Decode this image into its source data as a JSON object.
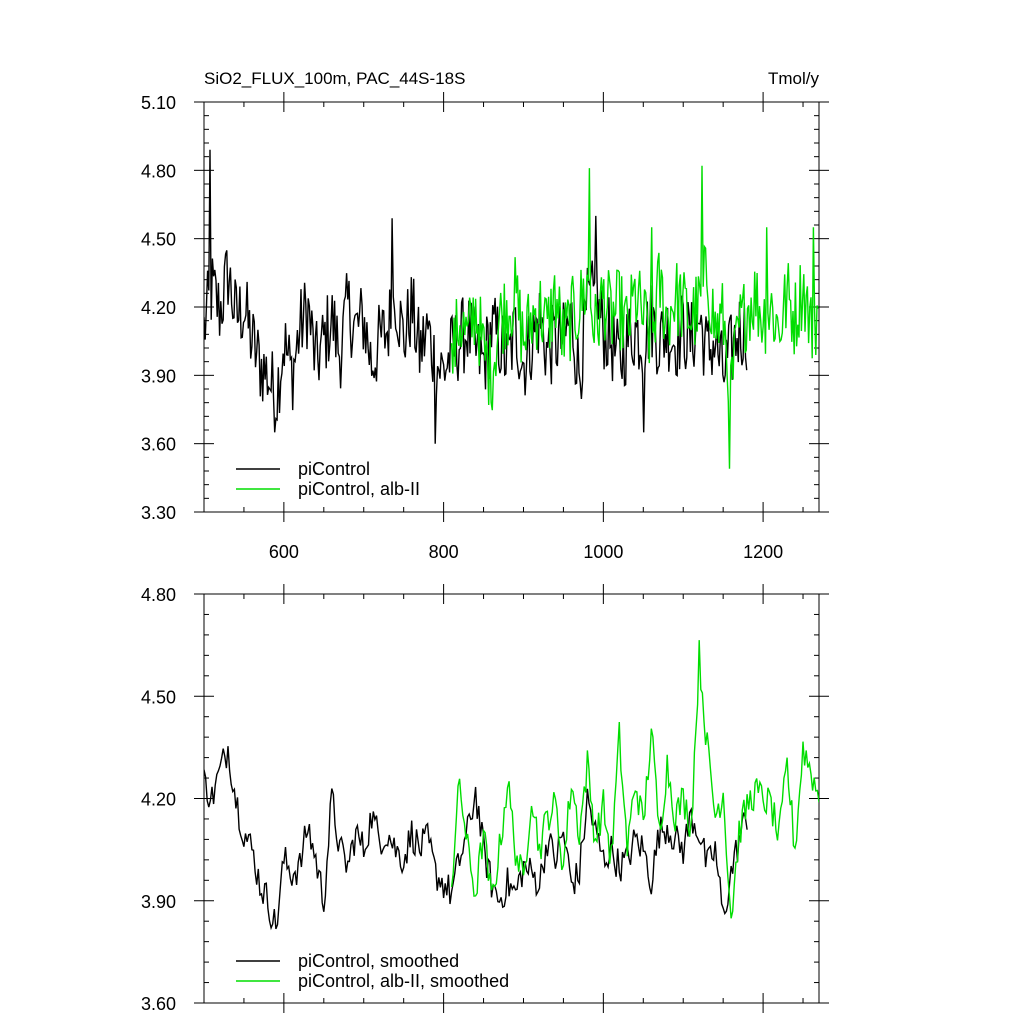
{
  "chart_data": [
    {
      "type": "line",
      "title": "SiO2_FLUX_100m, PAC_44S-18S",
      "units": "Tmol/y",
      "xlim": [
        500,
        1270
      ],
      "ylim": [
        3.3,
        5.1
      ],
      "x_ticks": [
        "600",
        "800",
        "1000",
        "1200"
      ],
      "y_ticks": [
        "3.30",
        "3.60",
        "3.90",
        "4.20",
        "4.50",
        "4.80",
        "5.10"
      ],
      "legend": [
        "piControl",
        "piControl, alb-II"
      ],
      "legend_position": "bottom-left",
      "series": [
        {
          "name": "piControl",
          "color": "#000000",
          "x": [
            500,
            510,
            520,
            530,
            540,
            550,
            560,
            570,
            580,
            590,
            600,
            610,
            620,
            630,
            640,
            650,
            660,
            670,
            680,
            690,
            700,
            710,
            720,
            730,
            740,
            750,
            760,
            770,
            780,
            790,
            800,
            810,
            820,
            830,
            840,
            850,
            860,
            870,
            880,
            890,
            900,
            910,
            920,
            930,
            940,
            950,
            960,
            970,
            980,
            990,
            1000,
            1010,
            1020,
            1030,
            1040,
            1050,
            1060,
            1070,
            1080,
            1090,
            1100,
            1110,
            1120,
            1130,
            1140,
            1150,
            1160,
            1170,
            1180
          ],
          "values": [
            4.1,
            4.28,
            4.18,
            4.35,
            4.15,
            4.2,
            4.05,
            3.95,
            3.9,
            3.8,
            4.05,
            3.9,
            4.1,
            4.2,
            3.95,
            4.05,
            4.15,
            4.0,
            4.2,
            4.1,
            4.15,
            3.95,
            4.05,
            4.1,
            4.25,
            4.05,
            4.2,
            4.0,
            4.1,
            3.95,
            3.92,
            4.0,
            4.05,
            4.1,
            4.0,
            3.95,
            4.1,
            4.05,
            3.95,
            4.1,
            3.95,
            4.05,
            4.15,
            4.0,
            4.05,
            4.05,
            4.15,
            3.9,
            4.2,
            4.25,
            4.1,
            4.05,
            3.95,
            4.05,
            4.1,
            4.05,
            4.15,
            4.05,
            4.1,
            4.05,
            4.1,
            4.05,
            4.15,
            4.0,
            4.05,
            3.9,
            4.0,
            4.1,
            4.1
          ],
          "spikes": [
            [
              508,
              4.89
            ],
            [
              735,
              4.59
            ],
            [
              790,
              3.6
            ],
            [
              588,
              3.65
            ],
            [
              990,
              4.6
            ],
            [
              1050,
              3.65
            ]
          ]
        },
        {
          "name": "piControl, alb-II",
          "color": "#00dd00",
          "x": [
            810,
            820,
            830,
            840,
            850,
            860,
            870,
            880,
            890,
            900,
            910,
            920,
            930,
            940,
            950,
            960,
            970,
            980,
            990,
            1000,
            1010,
            1020,
            1030,
            1040,
            1050,
            1060,
            1070,
            1080,
            1090,
            1100,
            1110,
            1120,
            1130,
            1140,
            1150,
            1160,
            1170,
            1180,
            1190,
            1200,
            1210,
            1220,
            1230,
            1240,
            1250,
            1260,
            1270
          ],
          "values": [
            3.95,
            4.15,
            4.05,
            4.2,
            4.0,
            3.9,
            4.15,
            4.2,
            4.25,
            4.05,
            4.15,
            4.2,
            4.1,
            4.25,
            4.05,
            4.15,
            4.2,
            4.3,
            4.1,
            4.25,
            4.15,
            4.2,
            4.1,
            4.25,
            4.15,
            4.05,
            4.3,
            4.15,
            4.25,
            4.2,
            4.15,
            4.2,
            4.35,
            4.1,
            4.15,
            3.85,
            4.1,
            4.2,
            4.25,
            4.15,
            4.2,
            4.1,
            4.25,
            4.15,
            4.3,
            4.1,
            4.2
          ],
          "spikes": [
            [
              983,
              4.81
            ],
            [
              1123,
              4.82
            ],
            [
              1158,
              3.49
            ],
            [
              1060,
              4.55
            ],
            [
              1205,
              4.55
            ],
            [
              1263,
              4.55
            ]
          ]
        }
      ]
    },
    {
      "type": "line",
      "xlim": [
        500,
        1270
      ],
      "ylim": [
        3.6,
        4.8
      ],
      "y_ticks": [
        "3.60",
        "3.90",
        "4.20",
        "4.50",
        "4.80"
      ],
      "legend": [
        "piControl, smoothed",
        "piControl, alb-II, smoothed"
      ],
      "legend_position": "bottom-left",
      "series": [
        {
          "name": "piControl, smoothed",
          "color": "#000000",
          "x": [
            500,
            510,
            520,
            530,
            540,
            550,
            560,
            570,
            580,
            590,
            600,
            610,
            620,
            630,
            640,
            650,
            660,
            670,
            680,
            690,
            700,
            710,
            720,
            730,
            740,
            750,
            760,
            770,
            780,
            790,
            800,
            810,
            820,
            830,
            840,
            850,
            860,
            870,
            880,
            890,
            900,
            910,
            920,
            930,
            940,
            950,
            960,
            970,
            980,
            990,
            1000,
            1010,
            1020,
            1030,
            1040,
            1050,
            1060,
            1070,
            1080,
            1090,
            1100,
            1110,
            1120,
            1130,
            1140,
            1150,
            1160,
            1170,
            1180
          ],
          "values": [
            4.25,
            4.2,
            4.28,
            4.35,
            4.2,
            4.1,
            4.05,
            3.95,
            3.9,
            3.82,
            4.02,
            3.98,
            4.0,
            4.12,
            4.02,
            3.9,
            4.2,
            4.05,
            4.0,
            4.1,
            4.05,
            4.15,
            4.08,
            4.1,
            4.05,
            4.02,
            4.1,
            4.05,
            4.08,
            3.98,
            3.95,
            3.92,
            4.02,
            4.1,
            4.22,
            4.05,
            3.95,
            3.9,
            3.95,
            3.92,
            4.0,
            3.98,
            3.95,
            4.08,
            4.02,
            4.1,
            3.95,
            3.98,
            4.2,
            4.1,
            4.02,
            4.05,
            4.0,
            4.02,
            4.08,
            4.05,
            3.96,
            4.1,
            4.12,
            4.08,
            4.05,
            4.15,
            4.1,
            4.0,
            4.05,
            3.85,
            3.98,
            4.08,
            4.15
          ]
        },
        {
          "name": "piControl, alb-II, smoothed",
          "color": "#00dd00",
          "x": [
            810,
            820,
            830,
            840,
            850,
            860,
            870,
            880,
            890,
            900,
            910,
            920,
            930,
            940,
            950,
            960,
            970,
            980,
            990,
            1000,
            1010,
            1020,
            1030,
            1040,
            1050,
            1060,
            1070,
            1080,
            1090,
            1100,
            1110,
            1120,
            1130,
            1140,
            1150,
            1160,
            1170,
            1180,
            1190,
            1200,
            1210,
            1220,
            1230,
            1240,
            1250,
            1260,
            1270
          ],
          "values": [
            3.95,
            4.25,
            4.05,
            3.92,
            4.1,
            3.9,
            4.05,
            4.25,
            4.05,
            3.95,
            4.22,
            4.05,
            4.15,
            4.18,
            4.0,
            4.25,
            4.1,
            4.3,
            4.08,
            4.18,
            4.02,
            4.38,
            4.05,
            4.25,
            4.12,
            4.4,
            4.1,
            4.3,
            4.15,
            4.2,
            4.12,
            4.62,
            4.35,
            4.15,
            4.22,
            3.85,
            4.1,
            4.18,
            4.22,
            4.2,
            4.18,
            4.08,
            4.3,
            4.05,
            4.35,
            4.28,
            4.2
          ]
        }
      ]
    }
  ]
}
